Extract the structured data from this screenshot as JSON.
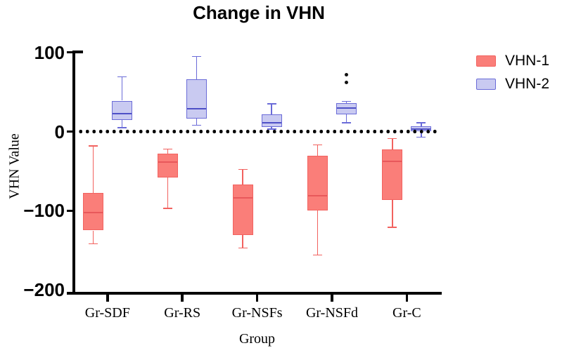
{
  "chart_data": {
    "type": "boxplot",
    "title": "Change in VHN",
    "xlabel": "Group",
    "ylabel": "VHN Value",
    "categories": [
      "Gr-SDF",
      "Gr-RS",
      "Gr-NSFs",
      "Gr-NSFd",
      "Gr-C"
    ],
    "ylim": [
      -200,
      100
    ],
    "y_axis_ticks": [
      {
        "value": 100,
        "label": "100"
      },
      {
        "value": 0,
        "label": "0"
      },
      {
        "value": -100,
        "label": "−100"
      },
      {
        "value": -200,
        "label": "−200"
      }
    ],
    "zero_baseline": {
      "value": 0,
      "style": "dotted",
      "color": "#000000"
    },
    "legend_position": "right",
    "grid": false,
    "series": [
      {
        "name": "VHN-1",
        "fill": "#FA7E79",
        "stroke": "#F2625F",
        "median_stroke": "#E8585B",
        "boxes": [
          {
            "category": "Gr-SDF",
            "whisker_low": -142,
            "q1": -125,
            "median": -102,
            "q3": -78,
            "whisker_high": -18,
            "outliers": []
          },
          {
            "category": "Gr-RS",
            "whisker_low": -97,
            "q1": -58,
            "median": -39,
            "q3": -28,
            "whisker_high": -22,
            "outliers": []
          },
          {
            "category": "Gr-NSFs",
            "whisker_low": -147,
            "q1": -131,
            "median": -84,
            "q3": -67,
            "whisker_high": -48,
            "outliers": []
          },
          {
            "category": "Gr-NSFd",
            "whisker_low": -156,
            "q1": -100,
            "median": -81,
            "q3": -31,
            "whisker_high": -17,
            "outliers": []
          },
          {
            "category": "Gr-C",
            "whisker_low": -121,
            "q1": -86,
            "median": -38,
            "q3": -23,
            "whisker_high": -9,
            "outliers": []
          }
        ]
      },
      {
        "name": "VHN-2",
        "fill": "#C9CAF1",
        "stroke": "#6A6BD8",
        "median_stroke": "#4E50C6",
        "boxes": [
          {
            "category": "Gr-SDF",
            "whisker_low": 5,
            "q1": 15,
            "median": 23,
            "q3": 39,
            "whisker_high": 69,
            "outliers": []
          },
          {
            "category": "Gr-RS",
            "whisker_low": 8,
            "q1": 16,
            "median": 29,
            "q3": 66,
            "whisker_high": 95,
            "outliers": []
          },
          {
            "category": "Gr-NSFs",
            "whisker_low": 3,
            "q1": 6,
            "median": 11,
            "q3": 22,
            "whisker_high": 35,
            "outliers": []
          },
          {
            "category": "Gr-NSFd",
            "whisker_low": 11,
            "q1": 22,
            "median": 30,
            "q3": 36,
            "whisker_high": 38,
            "outliers": [
              62,
              72
            ]
          },
          {
            "category": "Gr-C",
            "whisker_low": -7,
            "q1": 0,
            "median": 3,
            "q3": 7,
            "whisker_high": 11,
            "outliers": []
          }
        ]
      }
    ]
  }
}
